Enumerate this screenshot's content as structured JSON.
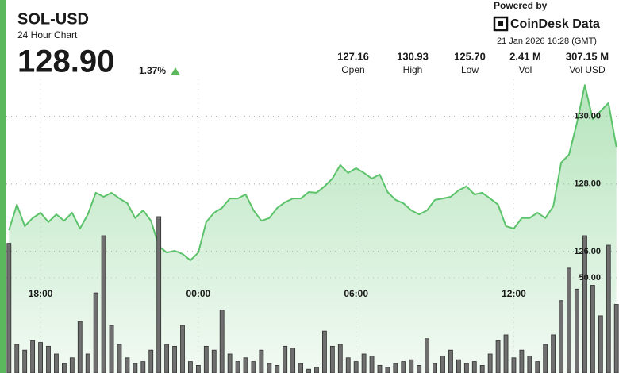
{
  "header": {
    "symbol": "SOL-USD",
    "subtitle": "24 Hour Chart",
    "price": "128.90",
    "change": "1.37%"
  },
  "stats": [
    {
      "value": "127.16",
      "label": "Open"
    },
    {
      "value": "130.93",
      "label": "High"
    },
    {
      "value": "125.70",
      "label": "Low"
    },
    {
      "value": "2.41 M",
      "label": "Vol"
    },
    {
      "value": "307.15 M",
      "label": "Vol USD"
    }
  ],
  "branding": {
    "powered": "Powered by",
    "brand": "CoinDesk Data",
    "timestamp": "21 Jan 2026 16:28 (GMT)"
  },
  "chart_data": {
    "type": "line",
    "x": [
      16.8,
      17.1,
      17.4,
      17.7,
      18,
      18.3,
      18.6,
      18.9,
      19.2,
      19.5,
      19.8,
      20.1,
      20.4,
      20.7,
      21,
      21.3,
      21.6,
      21.9,
      22.2,
      22.5,
      22.8,
      23.1,
      23.4,
      23.7,
      24,
      24.3,
      24.6,
      24.9,
      25.2,
      25.5,
      25.8,
      26.1,
      26.4,
      26.7,
      27,
      27.3,
      27.6,
      27.9,
      28.2,
      28.5,
      28.8,
      29.1,
      29.4,
      29.7,
      30,
      30.3,
      30.6,
      30.9,
      31.2,
      31.5,
      31.8,
      32.1,
      32.4,
      32.7,
      33,
      33.3,
      33.6,
      33.9,
      34.2,
      34.5,
      34.8,
      35.1,
      35.4,
      35.7,
      36,
      36.3,
      36.6,
      36.9,
      37.2,
      37.5,
      37.8,
      38.1,
      38.4,
      38.7,
      39,
      39.3,
      39.6,
      39.9
    ],
    "xlim": [
      16.7,
      40.0
    ],
    "xticks": [
      {
        "value": 18,
        "label": "18:00"
      },
      {
        "value": 24,
        "label": "00:00"
      },
      {
        "value": 30,
        "label": "06:00"
      },
      {
        "value": 36,
        "label": "12:00"
      }
    ],
    "ylim": [
      122.4,
      131.1
    ],
    "yticks": [
      {
        "value": 126,
        "label": "126.00"
      },
      {
        "value": 128,
        "label": "128.00"
      },
      {
        "value": 130,
        "label": "130.00"
      }
    ],
    "y2lim": [
      0,
      154
    ],
    "y2ticks": [
      {
        "value": 50,
        "label": "50.00"
      }
    ],
    "grid": true,
    "series": [
      {
        "color": "#5cc36b",
        "area": true,
        "values": [
          126.63,
          127.39,
          126.75,
          126.99,
          127.15,
          126.87,
          127.1,
          126.91,
          127.15,
          126.68,
          127.1,
          127.74,
          127.62,
          127.74,
          127.57,
          127.43,
          126.99,
          127.22,
          126.91,
          126.16,
          125.97,
          126.02,
          125.93,
          125.74,
          125.97,
          126.87,
          127.15,
          127.29,
          127.57,
          127.57,
          127.69,
          127.22,
          126.91,
          126.99,
          127.29,
          127.46,
          127.57,
          127.57,
          127.76,
          127.74,
          127.93,
          128.16,
          128.56,
          128.33,
          128.47,
          128.33,
          128.16,
          128.28,
          127.76,
          127.53,
          127.43,
          127.22,
          127.1,
          127.22,
          127.53,
          127.57,
          127.62,
          127.81,
          127.93,
          127.69,
          127.74,
          127.57,
          127.39,
          126.75,
          126.68,
          126.99,
          126.99,
          127.15,
          126.99,
          127.34,
          128.63,
          128.87,
          129.81,
          130.93,
          129.92,
          130.16,
          130.4,
          129.1
        ]
      },
      {
        "type": "bar",
        "axis": "y2",
        "color": "#6f6f6f",
        "values": [
          68,
          15,
          12,
          17,
          16,
          14,
          10,
          5,
          8,
          27,
          10,
          42,
          72,
          25,
          15,
          8,
          5,
          6,
          12,
          82,
          15,
          14,
          25,
          6,
          4,
          14,
          12,
          33,
          10,
          6,
          8,
          6,
          12,
          5,
          4,
          14,
          13,
          5,
          2,
          3,
          22,
          14,
          15,
          8,
          6,
          10,
          9,
          4,
          3,
          5,
          6,
          7,
          4,
          18,
          5,
          9,
          12,
          7,
          5,
          6,
          4,
          10,
          17,
          20,
          8,
          12,
          9,
          6,
          15,
          20,
          38,
          55,
          44,
          72,
          46,
          30,
          67,
          36
        ]
      }
    ]
  }
}
